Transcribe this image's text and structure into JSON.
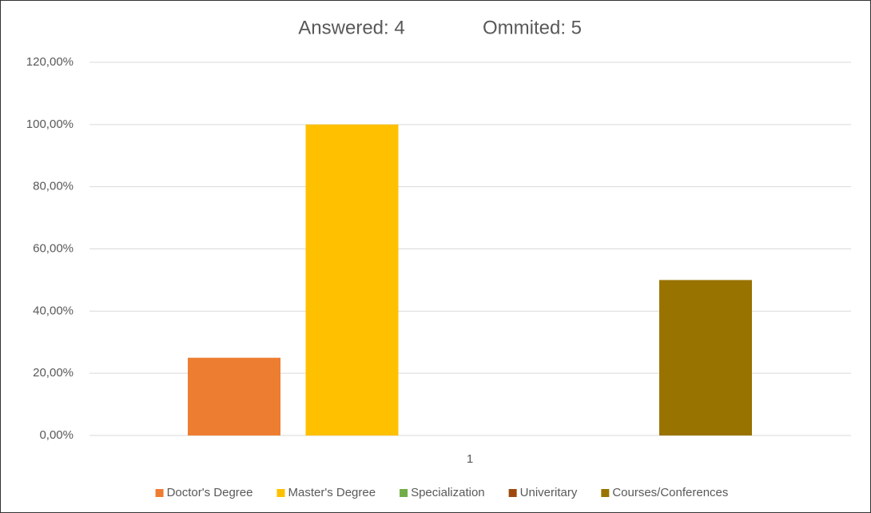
{
  "chart_data": {
    "type": "bar",
    "title": [
      "Answered: 4",
      "Ommited: 5"
    ],
    "categories": [
      "1"
    ],
    "series": [
      {
        "name": "Doctor's Degree",
        "color": "#ED7D31",
        "values": [
          25
        ]
      },
      {
        "name": "Master's Degree",
        "color": "#FFC000",
        "values": [
          100
        ]
      },
      {
        "name": "Specialization",
        "color": "#70AD47",
        "values": [
          0
        ]
      },
      {
        "name": "Univeritary",
        "color": "#9E480E",
        "values": [
          0
        ]
      },
      {
        "name": "Courses/Conferences",
        "color": "#997300",
        "values": [
          50
        ]
      }
    ],
    "ylim": [
      0,
      120
    ],
    "yticks": [
      {
        "value": 0,
        "label": "0,00%"
      },
      {
        "value": 20,
        "label": "20,00%"
      },
      {
        "value": 40,
        "label": "40,00%"
      },
      {
        "value": 60,
        "label": "60,00%"
      },
      {
        "value": 80,
        "label": "80,00%"
      },
      {
        "value": 100,
        "label": "100,00%"
      },
      {
        "value": 120,
        "label": "120,00%"
      }
    ],
    "grid": true,
    "legend": "bottom"
  }
}
